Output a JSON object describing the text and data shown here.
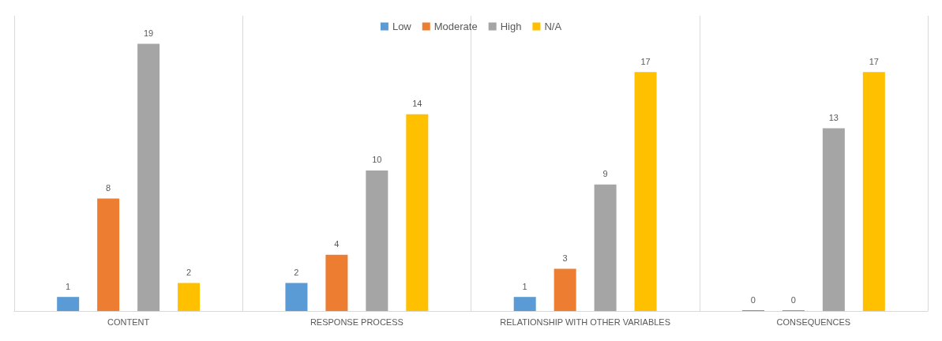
{
  "chart_data": {
    "type": "bar",
    "categories": [
      "CONTENT",
      "RESPONSE PROCESS",
      "RELATIONSHIP WITH OTHER VARIABLES",
      "CONSEQUENCES"
    ],
    "series": [
      {
        "name": "Low",
        "color": "#5b9bd5",
        "values": [
          1,
          2,
          1,
          0
        ]
      },
      {
        "name": "Moderate",
        "color": "#ed7d31",
        "values": [
          8,
          4,
          3,
          0
        ]
      },
      {
        "name": "High",
        "color": "#a5a5a5",
        "values": [
          19,
          10,
          9,
          13
        ]
      },
      {
        "name": "N/A",
        "color": "#ffc000",
        "values": [
          2,
          14,
          17,
          17
        ]
      }
    ],
    "data_labels": true,
    "legend": "top",
    "grid": "x"
  }
}
